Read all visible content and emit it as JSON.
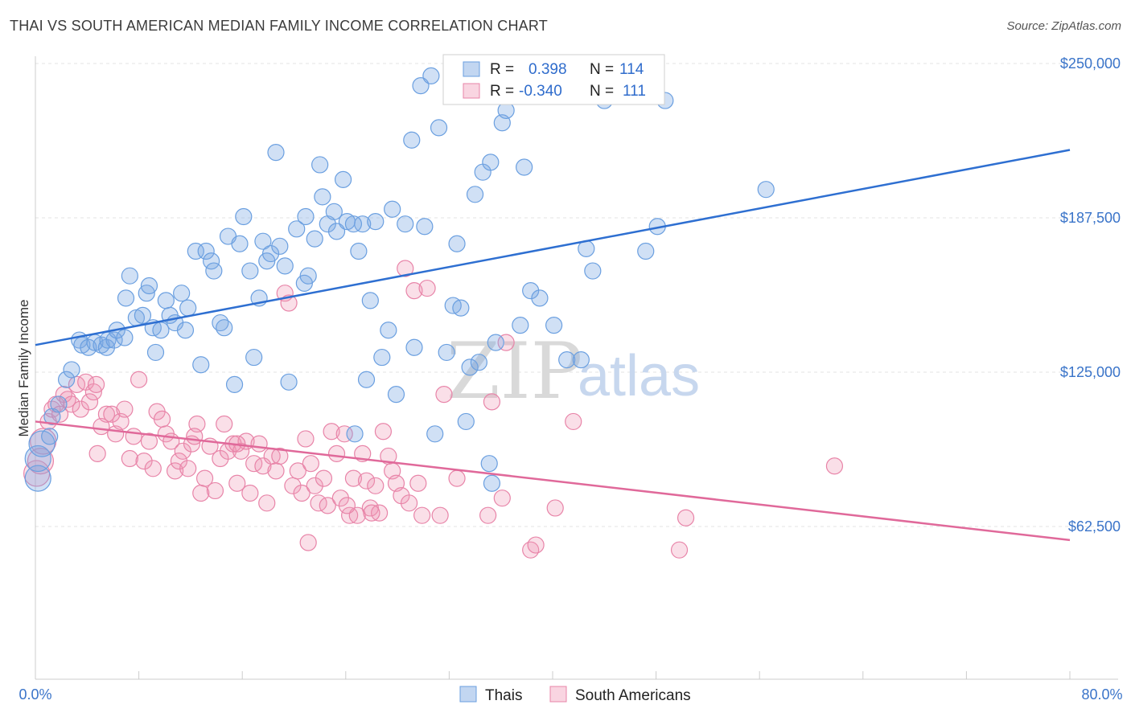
{
  "header": {
    "title": "THAI VS SOUTH AMERICAN MEDIAN FAMILY INCOME CORRELATION CHART",
    "source": "Source: ZipAtlas.com"
  },
  "watermark": {
    "zip": "ZIP",
    "atlas": "atlas"
  },
  "colors": {
    "blue": "#6a9fe0",
    "blue_fill": "rgba(120,165,225,0.35)",
    "blue_line": "#2e6fd1",
    "pink": "#e884a8",
    "pink_fill": "rgba(240,150,180,0.30)",
    "pink_line": "#e0699a",
    "grid": "#e3e3e3",
    "axis_text": "#3a74c9"
  },
  "legend": {
    "rows": [
      {
        "r_label": "R = ",
        "r_value": "0.398",
        "n_label": "N = ",
        "n_value": "114"
      },
      {
        "r_label": "R = ",
        "r_value": "-0.340",
        "n_label": "N = ",
        "n_value": "111"
      }
    ]
  },
  "bottom_legend": {
    "items": [
      {
        "label": "Thais"
      },
      {
        "label": "South Americans"
      }
    ]
  },
  "chart_data": {
    "type": "scatter",
    "title": "THAI VS SOUTH AMERICAN MEDIAN FAMILY INCOME CORRELATION CHART",
    "xlabel": "",
    "ylabel": "Median Family Income",
    "xlim": [
      0,
      80
    ],
    "ylim": [
      0,
      260000
    ],
    "x_tick_labels": [
      "0.0%",
      "80.0%"
    ],
    "y_ticks": [
      62500,
      125000,
      187500,
      250000
    ],
    "y_tick_labels": [
      "$62,500",
      "$125,000",
      "$187,500",
      "$250,000"
    ],
    "grid": "horizontal dashed",
    "legend_position": "top-center",
    "series": [
      {
        "name": "Thais",
        "r": 0.398,
        "n": 114,
        "trend": {
          "x": [
            0,
            80
          ],
          "y": [
            136000,
            215000
          ]
        },
        "points": [
          [
            0.2,
            82000
          ],
          [
            0.2,
            90000
          ],
          [
            0.5,
            96000
          ],
          [
            1.1,
            99000
          ],
          [
            1.3,
            107000
          ],
          [
            1.8,
            112000
          ],
          [
            2.4,
            122000
          ],
          [
            2.8,
            126000
          ],
          [
            3.4,
            138000
          ],
          [
            3.6,
            136000
          ],
          [
            4.1,
            135000
          ],
          [
            4.6,
            137000
          ],
          [
            5.1,
            136000
          ],
          [
            5.5,
            135000
          ],
          [
            5.6,
            138000
          ],
          [
            6.1,
            138000
          ],
          [
            6.3,
            142000
          ],
          [
            6.9,
            139000
          ],
          [
            7.0,
            155000
          ],
          [
            7.3,
            164000
          ],
          [
            7.8,
            147000
          ],
          [
            8.3,
            148000
          ],
          [
            8.6,
            157000
          ],
          [
            8.8,
            160000
          ],
          [
            9.1,
            143000
          ],
          [
            9.3,
            133000
          ],
          [
            9.7,
            142000
          ],
          [
            10.1,
            154000
          ],
          [
            10.4,
            148000
          ],
          [
            10.8,
            145000
          ],
          [
            11.3,
            157000
          ],
          [
            11.6,
            142000
          ],
          [
            11.8,
            151000
          ],
          [
            12.4,
            174000
          ],
          [
            12.8,
            128000
          ],
          [
            13.2,
            174000
          ],
          [
            13.6,
            170000
          ],
          [
            13.8,
            166000
          ],
          [
            14.3,
            145000
          ],
          [
            14.6,
            143000
          ],
          [
            14.9,
            180000
          ],
          [
            15.4,
            120000
          ],
          [
            15.8,
            177000
          ],
          [
            16.1,
            188000
          ],
          [
            16.6,
            166000
          ],
          [
            16.9,
            131000
          ],
          [
            17.3,
            155000
          ],
          [
            17.6,
            178000
          ],
          [
            17.9,
            170000
          ],
          [
            18.2,
            173000
          ],
          [
            18.6,
            214000
          ],
          [
            18.9,
            176000
          ],
          [
            19.3,
            168000
          ],
          [
            19.6,
            121000
          ],
          [
            20.2,
            183000
          ],
          [
            20.8,
            161000
          ],
          [
            21.1,
            164000
          ],
          [
            21.6,
            179000
          ],
          [
            22.0,
            209000
          ],
          [
            22.2,
            196000
          ],
          [
            22.6,
            185000
          ],
          [
            23.1,
            190000
          ],
          [
            23.3,
            182000
          ],
          [
            23.8,
            203000
          ],
          [
            24.1,
            186000
          ],
          [
            24.7,
            100000
          ],
          [
            25.0,
            174000
          ],
          [
            25.3,
            185000
          ],
          [
            25.6,
            122000
          ],
          [
            25.9,
            154000
          ],
          [
            26.3,
            186000
          ],
          [
            26.8,
            131000
          ],
          [
            27.3,
            142000
          ],
          [
            27.6,
            191000
          ],
          [
            27.9,
            116000
          ],
          [
            28.6,
            185000
          ],
          [
            29.1,
            219000
          ],
          [
            29.3,
            135000
          ],
          [
            29.8,
            241000
          ],
          [
            30.1,
            184000
          ],
          [
            30.6,
            245000
          ],
          [
            30.9,
            100000
          ],
          [
            31.2,
            224000
          ],
          [
            31.8,
            133000
          ],
          [
            32.3,
            152000
          ],
          [
            32.6,
            177000
          ],
          [
            32.9,
            151000
          ],
          [
            33.3,
            105000
          ],
          [
            33.6,
            127000
          ],
          [
            34.0,
            197000
          ],
          [
            34.3,
            129000
          ],
          [
            34.6,
            206000
          ],
          [
            35.1,
            88000
          ],
          [
            35.3,
            80000
          ],
          [
            35.6,
            137000
          ],
          [
            36.1,
            226000
          ],
          [
            36.4,
            231000
          ],
          [
            37.5,
            144000
          ],
          [
            37.8,
            208000
          ],
          [
            38.3,
            158000
          ],
          [
            39.0,
            155000
          ],
          [
            40.1,
            144000
          ],
          [
            41.1,
            130000
          ],
          [
            42.2,
            130000
          ],
          [
            42.6,
            175000
          ],
          [
            43.1,
            166000
          ],
          [
            44.0,
            235000
          ],
          [
            47.2,
            174000
          ],
          [
            48.1,
            184000
          ],
          [
            48.7,
            235000
          ],
          [
            56.5,
            199000
          ],
          [
            24.6,
            185000
          ],
          [
            20.9,
            188000
          ],
          [
            35.2,
            210000
          ]
        ]
      },
      {
        "name": "South Americans",
        "r": -0.34,
        "n": 111,
        "trend": {
          "x": [
            0,
            80
          ],
          "y": [
            105000,
            57000
          ]
        },
        "points": [
          [
            0.1,
            84000
          ],
          [
            0.4,
            89000
          ],
          [
            0.6,
            97000
          ],
          [
            1.0,
            105000
          ],
          [
            1.3,
            110000
          ],
          [
            1.6,
            112000
          ],
          [
            1.9,
            108000
          ],
          [
            2.2,
            116000
          ],
          [
            2.5,
            114000
          ],
          [
            2.8,
            112000
          ],
          [
            3.2,
            120000
          ],
          [
            3.5,
            110000
          ],
          [
            3.9,
            121000
          ],
          [
            4.2,
            113000
          ],
          [
            4.5,
            117000
          ],
          [
            4.8,
            92000
          ],
          [
            5.1,
            103000
          ],
          [
            5.5,
            108000
          ],
          [
            5.9,
            108000
          ],
          [
            6.2,
            100000
          ],
          [
            6.6,
            105000
          ],
          [
            6.9,
            110000
          ],
          [
            7.3,
            90000
          ],
          [
            7.6,
            99000
          ],
          [
            8.0,
            122000
          ],
          [
            8.4,
            89000
          ],
          [
            8.8,
            97000
          ],
          [
            9.1,
            86000
          ],
          [
            9.4,
            109000
          ],
          [
            9.8,
            106000
          ],
          [
            10.1,
            100000
          ],
          [
            10.5,
            97000
          ],
          [
            10.8,
            85000
          ],
          [
            11.1,
            89000
          ],
          [
            11.4,
            93000
          ],
          [
            11.8,
            86000
          ],
          [
            12.1,
            96000
          ],
          [
            12.5,
            104000
          ],
          [
            12.8,
            76000
          ],
          [
            13.1,
            82000
          ],
          [
            13.5,
            95000
          ],
          [
            13.9,
            77000
          ],
          [
            14.3,
            90000
          ],
          [
            14.6,
            104000
          ],
          [
            14.9,
            93000
          ],
          [
            15.3,
            96000
          ],
          [
            15.6,
            80000
          ],
          [
            15.9,
            93000
          ],
          [
            16.3,
            97000
          ],
          [
            16.6,
            76000
          ],
          [
            16.9,
            88000
          ],
          [
            17.3,
            96000
          ],
          [
            17.6,
            87000
          ],
          [
            17.9,
            72000
          ],
          [
            18.3,
            91000
          ],
          [
            18.6,
            85000
          ],
          [
            18.9,
            91000
          ],
          [
            19.3,
            157000
          ],
          [
            19.6,
            153000
          ],
          [
            19.9,
            79000
          ],
          [
            20.3,
            85000
          ],
          [
            20.6,
            76000
          ],
          [
            20.9,
            98000
          ],
          [
            21.3,
            88000
          ],
          [
            21.6,
            79000
          ],
          [
            21.9,
            72000
          ],
          [
            22.3,
            82000
          ],
          [
            22.6,
            71000
          ],
          [
            22.9,
            101000
          ],
          [
            23.3,
            92000
          ],
          [
            23.6,
            74000
          ],
          [
            23.9,
            100000
          ],
          [
            24.3,
            67000
          ],
          [
            24.6,
            82000
          ],
          [
            24.9,
            67000
          ],
          [
            25.3,
            92000
          ],
          [
            25.6,
            81000
          ],
          [
            25.9,
            70000
          ],
          [
            26.3,
            79000
          ],
          [
            26.6,
            68000
          ],
          [
            26.9,
            101000
          ],
          [
            27.3,
            91000
          ],
          [
            27.6,
            85000
          ],
          [
            27.9,
            80000
          ],
          [
            28.3,
            75000
          ],
          [
            28.6,
            167000
          ],
          [
            28.9,
            72000
          ],
          [
            29.3,
            158000
          ],
          [
            29.6,
            80000
          ],
          [
            29.9,
            67000
          ],
          [
            30.3,
            159000
          ],
          [
            31.3,
            67000
          ],
          [
            31.6,
            116000
          ],
          [
            32.6,
            82000
          ],
          [
            35.0,
            67000
          ],
          [
            35.3,
            113000
          ],
          [
            36.1,
            74000
          ],
          [
            36.4,
            137000
          ],
          [
            38.3,
            53000
          ],
          [
            38.7,
            55000
          ],
          [
            40.2,
            70000
          ],
          [
            41.6,
            105000
          ],
          [
            49.8,
            53000
          ],
          [
            50.3,
            66000
          ],
          [
            61.8,
            87000
          ],
          [
            21.1,
            56000
          ],
          [
            24.1,
            71000
          ],
          [
            15.6,
            96000
          ],
          [
            12.3,
            99000
          ],
          [
            4.7,
            120000
          ],
          [
            26.0,
            68000
          ]
        ]
      }
    ]
  }
}
